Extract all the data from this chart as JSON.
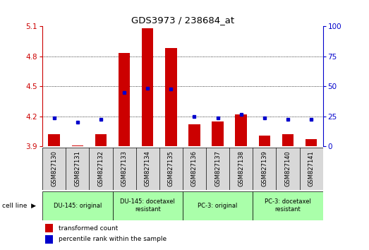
{
  "title": "GDS3973 / 238684_at",
  "samples": [
    "GSM827130",
    "GSM827131",
    "GSM827132",
    "GSM827133",
    "GSM827134",
    "GSM827135",
    "GSM827136",
    "GSM827137",
    "GSM827138",
    "GSM827139",
    "GSM827140",
    "GSM827141"
  ],
  "red_values": [
    4.02,
    3.91,
    4.02,
    4.83,
    5.08,
    4.88,
    4.12,
    4.15,
    4.22,
    4.01,
    4.02,
    3.97
  ],
  "blue_values": [
    4.18,
    4.14,
    4.17,
    4.44,
    4.48,
    4.47,
    4.2,
    4.18,
    4.22,
    4.18,
    4.17,
    4.17
  ],
  "ylim_left": [
    3.9,
    5.1
  ],
  "ylim_right": [
    0,
    100
  ],
  "yticks_left": [
    3.9,
    4.2,
    4.5,
    4.8,
    5.1
  ],
  "yticks_right": [
    0,
    25,
    50,
    75,
    100
  ],
  "left_color": "#cc0000",
  "right_color": "#0000cc",
  "bar_color": "#cc0000",
  "dot_color": "#0000cc",
  "cell_line_labels": [
    "DU-145: original",
    "DU-145: docetaxel\nresistant",
    "PC-3: original",
    "PC-3: docetaxel\nresistant"
  ],
  "cell_line_spans": [
    [
      0,
      3
    ],
    [
      3,
      6
    ],
    [
      6,
      9
    ],
    [
      9,
      12
    ]
  ],
  "grid_dotted_at": [
    4.2,
    4.5,
    4.8
  ],
  "legend_red": "transformed count",
  "legend_blue": "percentile rank within the sample",
  "base_value": 3.9,
  "bar_width": 0.5,
  "x_bg_color": "#d8d8d8",
  "cell_bg_color": "#aaffaa",
  "plot_bg": "#ffffff"
}
